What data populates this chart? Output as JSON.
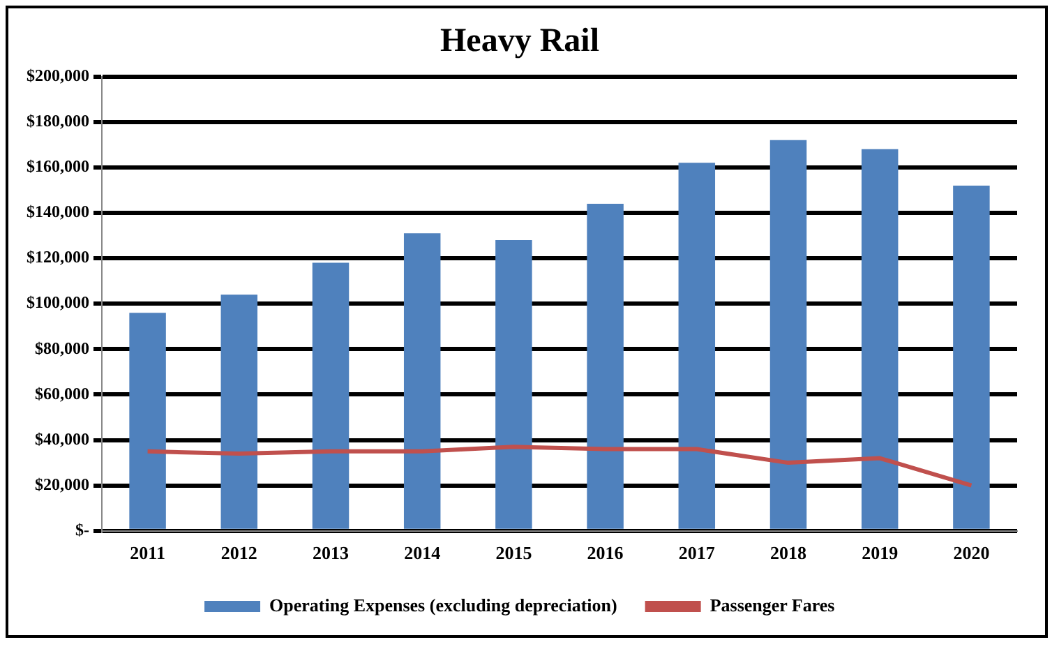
{
  "chart_data": {
    "type": "bar",
    "title": "Heavy Rail",
    "categories": [
      "2011",
      "2012",
      "2013",
      "2014",
      "2015",
      "2016",
      "2017",
      "2018",
      "2019",
      "2020"
    ],
    "series": [
      {
        "name": "Operating Expenses (excluding depreciation)",
        "color": "#4f81bd",
        "values": [
          96000,
          104000,
          118000,
          131000,
          128000,
          144000,
          162000,
          172000,
          168000,
          152000
        ]
      },
      {
        "name": "Passenger Fares",
        "type": "line",
        "color": "#c0504d",
        "values": [
          35000,
          34000,
          35000,
          35000,
          37000,
          36000,
          36000,
          30000,
          32000,
          20000
        ]
      }
    ],
    "ylim": [
      0,
      200000
    ],
    "yticks": [
      {
        "value": 0,
        "label": "$-"
      },
      {
        "value": 20000,
        "label": "$20,000"
      },
      {
        "value": 40000,
        "label": "$40,000"
      },
      {
        "value": 60000,
        "label": "$60,000"
      },
      {
        "value": 80000,
        "label": "$80,000"
      },
      {
        "value": 100000,
        "label": "$100,000"
      },
      {
        "value": 120000,
        "label": "$120,000"
      },
      {
        "value": 140000,
        "label": "$140,000"
      },
      {
        "value": 160000,
        "label": "$160,000"
      },
      {
        "value": 180000,
        "label": "$180,000"
      },
      {
        "value": 200000,
        "label": "$200,000"
      }
    ],
    "grid": "y",
    "legend": "bottom",
    "marker": "none",
    "line_style": "solid"
  }
}
